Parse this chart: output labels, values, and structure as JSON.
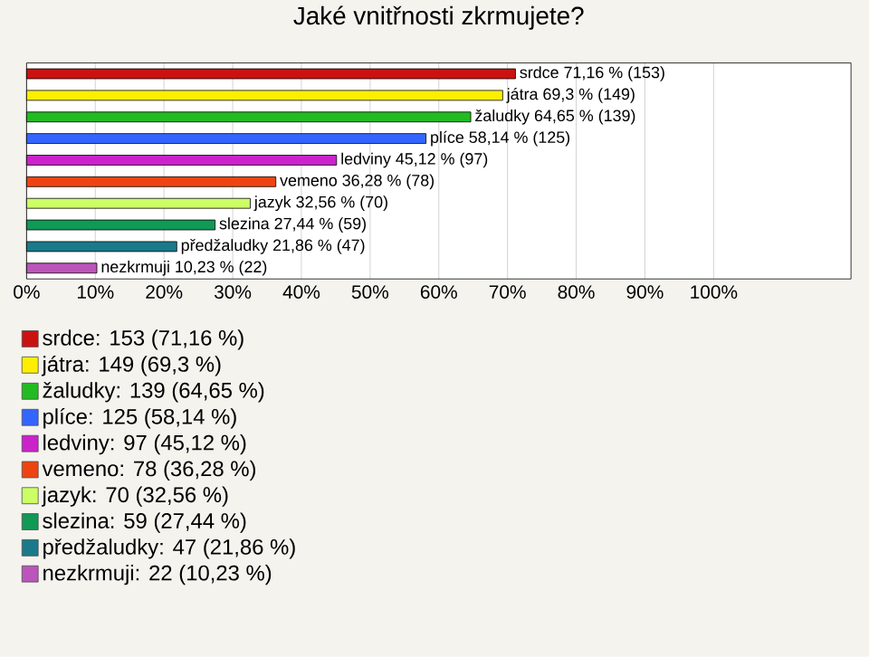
{
  "chart_data": {
    "type": "bar",
    "orientation": "horizontal",
    "title": "Jaké vnitřnosti zkrmujete?",
    "categories": [
      null,
      null,
      null,
      null,
      null,
      null,
      null,
      null,
      null,
      null
    ],
    "series": [
      {
        "name": "srdce: 153 (71,16 %)",
        "color": "#cc1111",
        "values": [
          71.16,
          null,
          null,
          null,
          null,
          null,
          null,
          null,
          null,
          null
        ],
        "value_labels": [
          "srdce 71,16 % (153)",
          null,
          null,
          null,
          null,
          null,
          null,
          null,
          null,
          null
        ]
      },
      {
        "name": "játra: 149 (69,3 %)",
        "color": "#ffee00",
        "values": [
          null,
          69.3,
          null,
          null,
          null,
          null,
          null,
          null,
          null,
          null
        ],
        "value_labels": [
          null,
          "játra 69,3 % (149)",
          null,
          null,
          null,
          null,
          null,
          null,
          null,
          null
        ]
      },
      {
        "name": "žaludky: 139 (64,65 %)",
        "color": "#22bb22",
        "values": [
          null,
          null,
          64.65,
          null,
          null,
          null,
          null,
          null,
          null,
          null
        ],
        "value_labels": [
          null,
          null,
          "žaludky 64,65 % (139)",
          null,
          null,
          null,
          null,
          null,
          null,
          null
        ]
      },
      {
        "name": "plíce: 125 (58,14 %)",
        "color": "#3366ff",
        "values": [
          null,
          null,
          null,
          58.14,
          null,
          null,
          null,
          null,
          null,
          null
        ],
        "value_labels": [
          null,
          null,
          null,
          "plíce 58,14 % (125)",
          null,
          null,
          null,
          null,
          null,
          null
        ]
      },
      {
        "name": "ledviny: 97 (45,12 %)",
        "color": "#cc22cc",
        "values": [
          null,
          null,
          null,
          null,
          45.12,
          null,
          null,
          null,
          null,
          null
        ],
        "value_labels": [
          null,
          null,
          null,
          null,
          "ledviny 45,12 % (97)",
          null,
          null,
          null,
          null,
          null
        ]
      },
      {
        "name": "vemeno: 78 (36,28 %)",
        "color": "#ee4411",
        "values": [
          null,
          null,
          null,
          null,
          null,
          36.28,
          null,
          null,
          null,
          null
        ],
        "value_labels": [
          null,
          null,
          null,
          null,
          null,
          "vemeno 36,28 % (78)",
          null,
          null,
          null,
          null
        ]
      },
      {
        "name": "jazyk: 70 (32,56 %)",
        "color": "#ccff66",
        "values": [
          null,
          null,
          null,
          null,
          null,
          null,
          32.56,
          null,
          null,
          null
        ],
        "value_labels": [
          null,
          null,
          null,
          null,
          null,
          null,
          "jazyk 32,56 % (70)",
          null,
          null,
          null
        ]
      },
      {
        "name": "slezina: 59 (27,44 %)",
        "color": "#119955",
        "values": [
          null,
          null,
          null,
          null,
          null,
          null,
          null,
          27.44,
          null,
          null
        ],
        "value_labels": [
          null,
          null,
          null,
          null,
          null,
          null,
          null,
          "slezina 27,44 % (59)",
          null,
          null
        ]
      },
      {
        "name": "předžaludky: 47 (21,86 %)",
        "color": "#1a7a8a",
        "values": [
          null,
          null,
          null,
          null,
          null,
          null,
          null,
          null,
          21.86,
          null
        ],
        "value_labels": [
          null,
          null,
          null,
          null,
          null,
          null,
          null,
          null,
          "předžaludky 21,86 % (47)",
          null
        ]
      },
      {
        "name": "nezkrmuji: 22 (10,23 %)",
        "color": "#bb55bb",
        "values": [
          null,
          null,
          null,
          null,
          null,
          null,
          null,
          null,
          null,
          10.23
        ],
        "value_labels": [
          null,
          null,
          null,
          null,
          null,
          null,
          null,
          null,
          null,
          "nezkrmuji 10,23 % (22)"
        ]
      }
    ],
    "xlim": [
      0,
      120
    ],
    "xticks": [
      {
        "value": 0,
        "label": "0%"
      },
      {
        "value": 10,
        "label": "10%"
      },
      {
        "value": 20,
        "label": "20%"
      },
      {
        "value": 30,
        "label": "30%"
      },
      {
        "value": 40,
        "label": "40%"
      },
      {
        "value": 50,
        "label": "50%"
      },
      {
        "value": 60,
        "label": "60%"
      },
      {
        "value": 70,
        "label": "70%"
      },
      {
        "value": 80,
        "label": "80%"
      },
      {
        "value": 90,
        "label": "90%"
      },
      {
        "value": 100,
        "label": "100%"
      }
    ],
    "grid": "x",
    "legend": "bottom"
  }
}
